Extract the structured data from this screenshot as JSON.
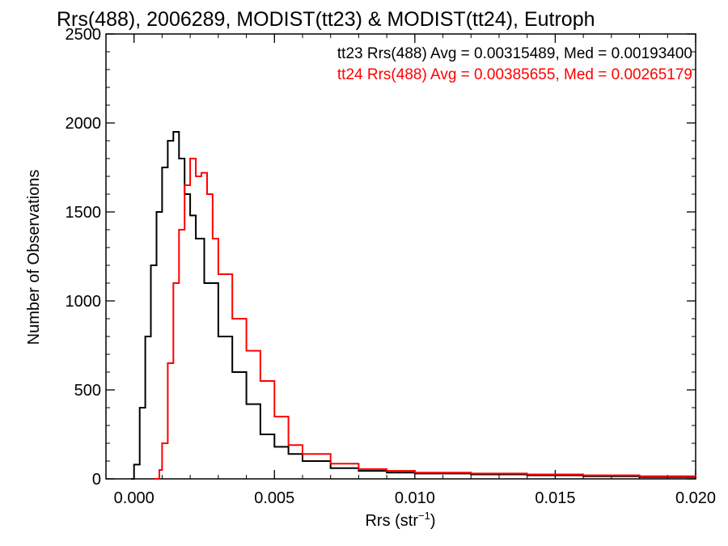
{
  "chart_data": {
    "type": "line",
    "title": "Rrs(488), 2006289, MODIST(tt23) & MODIST(tt24), Eutroph",
    "xlabel_main": "Rrs (str",
    "xlabel_sup": "−1",
    "xlabel_close": ")",
    "ylabel": "Number of Observations",
    "xlim": [
      -0.001,
      0.02
    ],
    "ylim": [
      0,
      2500
    ],
    "x_ticks": [
      0.0,
      0.005,
      0.01,
      0.015,
      0.02
    ],
    "x_tick_labels": [
      "0.000",
      "0.005",
      "0.010",
      "0.015",
      "0.020"
    ],
    "y_ticks": [
      0,
      500,
      1000,
      1500,
      2000,
      2500
    ],
    "y_tick_labels": [
      "0",
      "500",
      "1000",
      "1500",
      "2000",
      "2500"
    ],
    "grid": false,
    "legend_placement": "top-right",
    "series": [
      {
        "name": "tt23",
        "color": "#000000",
        "legend": "tt23 Rrs(488) Avg = 0.00315489, Med = 0.00193400",
        "x": [
          -0.0001,
          0.0,
          0.0002,
          0.0004,
          0.0006,
          0.0008,
          0.001,
          0.0012,
          0.0014,
          0.0016,
          0.0018,
          0.002,
          0.0022,
          0.0025,
          0.003,
          0.0035,
          0.004,
          0.0045,
          0.005,
          0.0055,
          0.006,
          0.007,
          0.008,
          0.009,
          0.01,
          0.012,
          0.014,
          0.016,
          0.018,
          0.02
        ],
        "y": [
          0,
          80,
          400,
          800,
          1200,
          1500,
          1750,
          1900,
          1950,
          1800,
          1600,
          1480,
          1350,
          1100,
          800,
          600,
          420,
          250,
          180,
          140,
          100,
          60,
          45,
          35,
          30,
          25,
          20,
          15,
          10,
          5
        ]
      },
      {
        "name": "tt24",
        "color": "#ff0000",
        "legend": "tt24 Rrs(488) Avg = 0.00385655, Med = 0.00265179",
        "x": [
          0.0007,
          0.0009,
          0.001,
          0.0012,
          0.0014,
          0.0016,
          0.0018,
          0.002,
          0.0022,
          0.0024,
          0.0026,
          0.0028,
          0.003,
          0.0035,
          0.004,
          0.0045,
          0.005,
          0.0055,
          0.006,
          0.007,
          0.008,
          0.009,
          0.01,
          0.012,
          0.014,
          0.016,
          0.018,
          0.02
        ],
        "y": [
          0,
          50,
          200,
          650,
          1100,
          1400,
          1650,
          1800,
          1700,
          1720,
          1600,
          1350,
          1150,
          900,
          720,
          550,
          350,
          190,
          140,
          85,
          55,
          45,
          35,
          30,
          25,
          20,
          15,
          10
        ]
      }
    ]
  }
}
